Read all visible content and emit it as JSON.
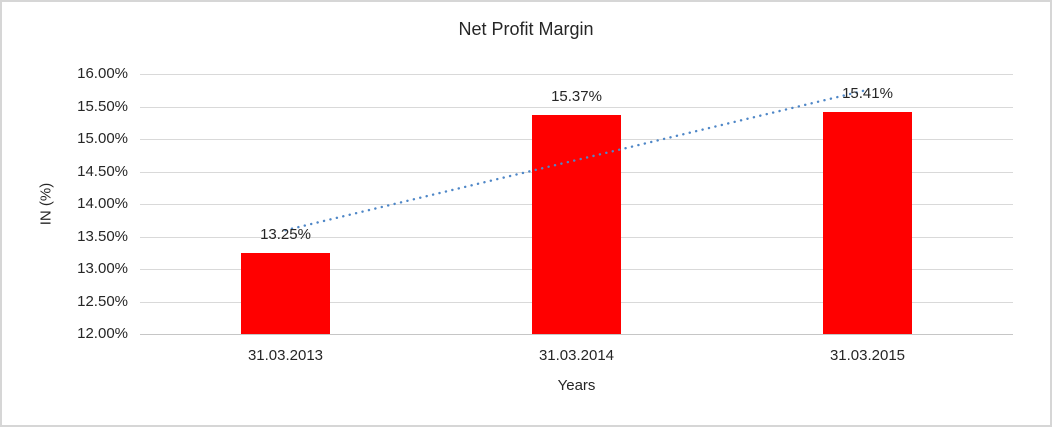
{
  "chart_data": {
    "type": "bar",
    "title": "Net Profit Margin",
    "xlabel": "Years",
    "ylabel": "IN (%)",
    "categories": [
      "31.03.2013",
      "31.03.2014",
      "31.03.2015"
    ],
    "values": [
      13.25,
      15.37,
      15.41
    ],
    "data_labels": [
      "13.25%",
      "15.37%",
      "15.41%"
    ],
    "ylim": [
      12,
      16
    ],
    "ytick_step": 0.5,
    "ytick_labels": [
      "16.00%",
      "15.50%",
      "15.00%",
      "14.50%",
      "14.00%",
      "13.50%",
      "13.00%",
      "12.50%",
      "12.00%"
    ],
    "grid": true,
    "legend": "none",
    "bar_color": "#FF0000",
    "gridline_color": "#D9D9D9",
    "axis_line_color": "#C6C6C6",
    "text_color": "#262626",
    "trendline": {
      "type": "linear",
      "style": "dotted",
      "color": "#4F87C7"
    }
  }
}
